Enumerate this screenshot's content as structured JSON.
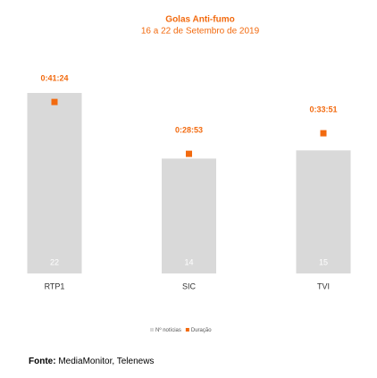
{
  "chart_data": {
    "type": "bar",
    "title": "Golas Anti-fumo",
    "subtitle": "16 a 22 de Setembro de 2019",
    "categories": [
      "RTP1",
      "SIC",
      "TVI"
    ],
    "series": [
      {
        "name": "Nº notícias",
        "type": "bar",
        "color": "#d9d9d9",
        "values": [
          22,
          14,
          15
        ]
      },
      {
        "name": "Duração",
        "type": "scatter",
        "axis": "y2",
        "color": "#f26a0f",
        "values": [
          2484,
          1733,
          2031
        ],
        "value_labels": [
          "0:41:24",
          "0:28:53",
          "0:33:51"
        ]
      }
    ],
    "ylim": [
      0,
      22
    ],
    "y2lim": [
      0,
      2615
    ],
    "grid": false,
    "legend": "bottom",
    "source": {
      "label": "Fonte:",
      "text": "MediaMonitor, Telenews"
    }
  }
}
